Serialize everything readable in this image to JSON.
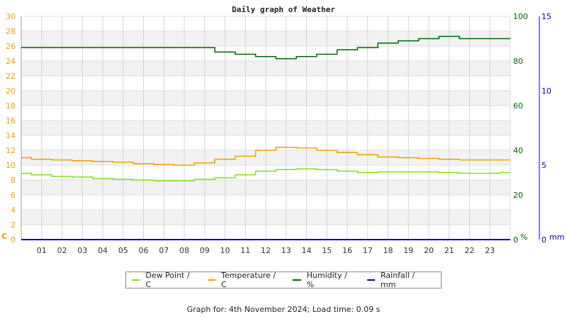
{
  "chart_data": {
    "type": "line",
    "title": "Daily graph of Weather",
    "xlabel": "",
    "x_ticks": [
      "01",
      "02",
      "03",
      "04",
      "05",
      "06",
      "07",
      "08",
      "09",
      "10",
      "11",
      "12",
      "13",
      "14",
      "15",
      "16",
      "17",
      "18",
      "19",
      "20",
      "21",
      "22",
      "23"
    ],
    "x_range_hours": [
      0,
      24
    ],
    "grid": true,
    "legend_position": "bottom",
    "axes": {
      "left": {
        "label": "C",
        "range": [
          0,
          30
        ],
        "ticks": [
          0,
          2,
          4,
          6,
          8,
          10,
          12,
          14,
          16,
          18,
          20,
          22,
          24,
          26,
          28,
          30
        ],
        "color": "#f0a000"
      },
      "right_humidity": {
        "label": "%",
        "range": [
          0,
          100
        ],
        "ticks": [
          0,
          20,
          40,
          60,
          80,
          100
        ],
        "color": "#006400"
      },
      "right_rainfall": {
        "label": "mm",
        "range": [
          0,
          15
        ],
        "ticks": [
          0,
          5,
          10,
          15
        ],
        "color": "#0000c0"
      }
    },
    "x": [
      0,
      1,
      2,
      3,
      4,
      5,
      6,
      7,
      8,
      9,
      10,
      11,
      12,
      13,
      14,
      15,
      16,
      17,
      18,
      19,
      20,
      21,
      22,
      23,
      24
    ],
    "series": [
      {
        "name": "Dew Point / C",
        "color": "#80e020",
        "axis": "left",
        "values": [
          8.9,
          8.7,
          8.5,
          8.4,
          8.2,
          8.1,
          8.0,
          7.9,
          7.9,
          8.1,
          8.3,
          8.7,
          9.2,
          9.4,
          9.5,
          9.4,
          9.2,
          9.0,
          9.1,
          9.1,
          9.1,
          9.0,
          8.9,
          8.9,
          9.0
        ]
      },
      {
        "name": "Temperature / C",
        "color": "#f0a000",
        "axis": "left",
        "values": [
          11.0,
          10.8,
          10.7,
          10.6,
          10.5,
          10.4,
          10.2,
          10.1,
          10.0,
          10.3,
          10.8,
          11.2,
          12.0,
          12.4,
          12.3,
          12.0,
          11.7,
          11.4,
          11.1,
          11.0,
          10.9,
          10.8,
          10.7,
          10.7,
          10.7
        ]
      },
      {
        "name": "Humidity / %",
        "color": "#006400",
        "axis": "right_humidity",
        "values": [
          86,
          86,
          86,
          86,
          86,
          86,
          86,
          86,
          86,
          86,
          84,
          83,
          82,
          81,
          82,
          83,
          85,
          86,
          88,
          89,
          90,
          91,
          90,
          90,
          90
        ]
      },
      {
        "name": "Rainfall / mm",
        "color": "#0000c0",
        "axis": "right_rainfall",
        "values": [
          0,
          0,
          0,
          0,
          0,
          0,
          0,
          0,
          0,
          0,
          0,
          0,
          0,
          0,
          0,
          0,
          0,
          0,
          0,
          0,
          0,
          0,
          0,
          0,
          0
        ]
      }
    ]
  },
  "legend": {
    "items": [
      {
        "label": "Dew Point / C",
        "color": "#80e020"
      },
      {
        "label": "Temperature / C",
        "color": "#f0a000"
      },
      {
        "label": "Humidity / %",
        "color": "#006400"
      },
      {
        "label": "Rainfall / mm",
        "color": "#0000c0"
      }
    ]
  },
  "footer": {
    "text": "Graph for: 4th November 2024; Load time: 0.09 s"
  }
}
